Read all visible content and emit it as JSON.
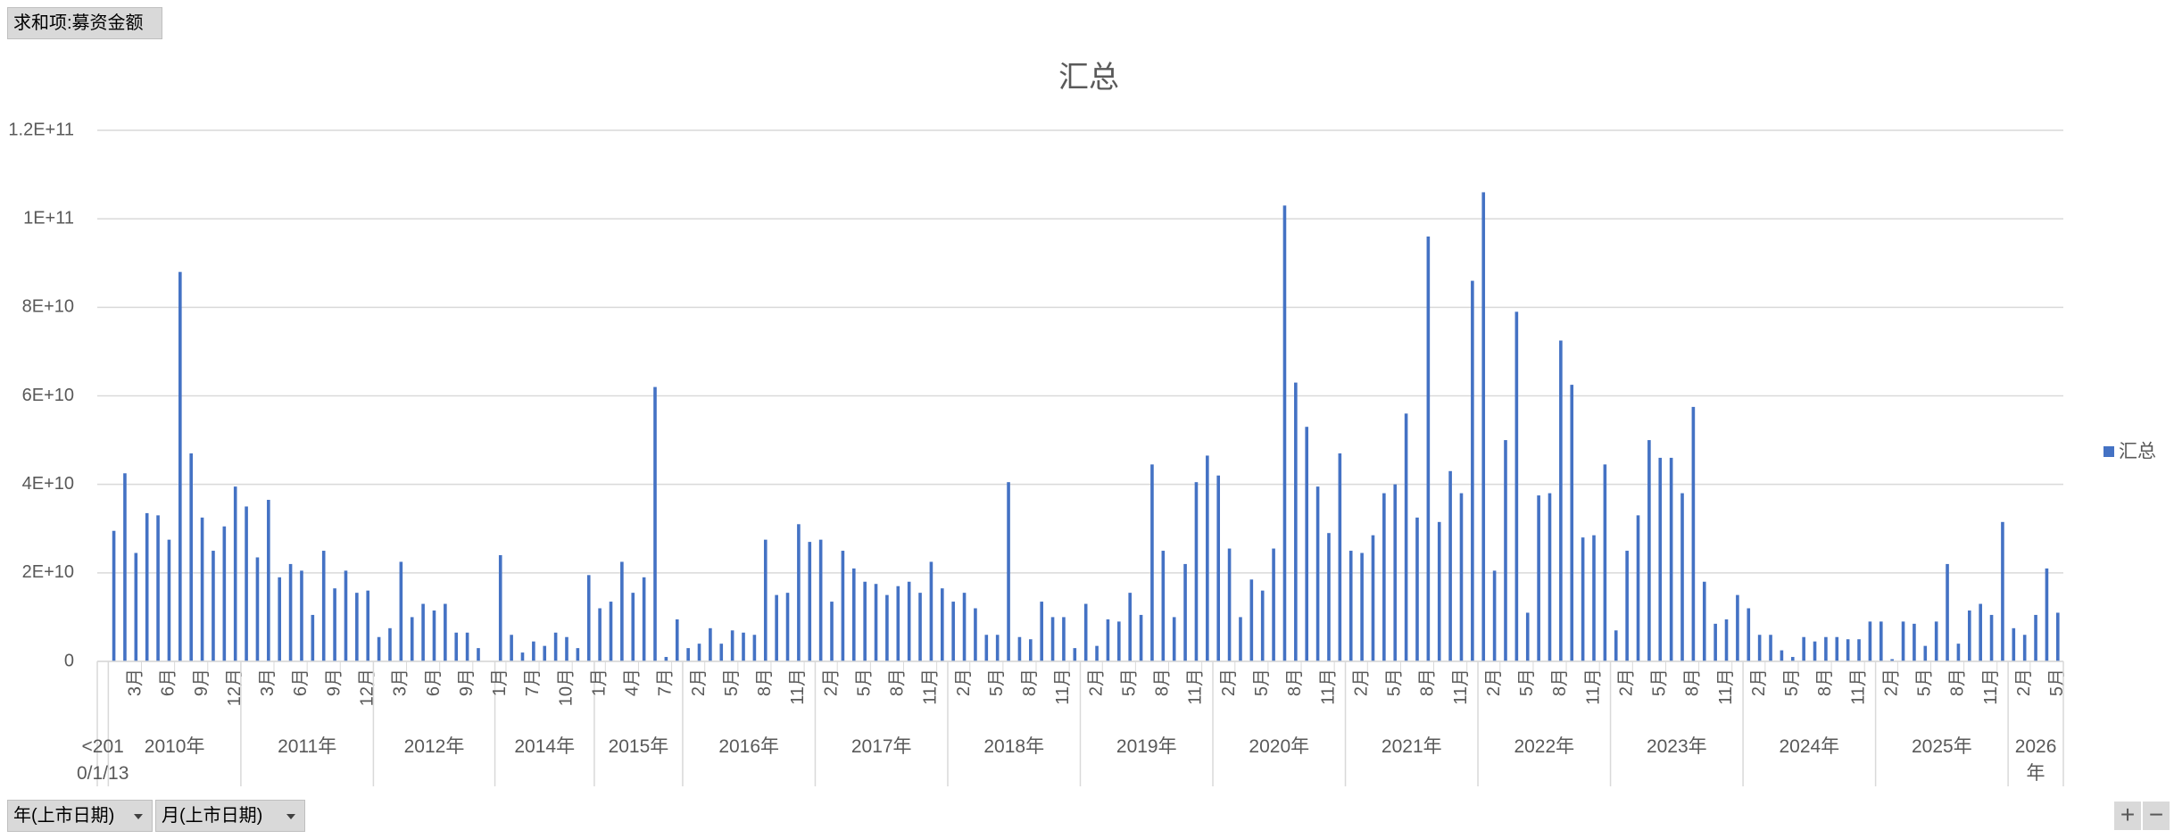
{
  "pivot": {
    "value_field": "求和项:募资金额",
    "row_fields": [
      "年(上市日期)",
      "月(上市日期)"
    ]
  },
  "chart_data": {
    "type": "bar",
    "title": "汇总",
    "legend": "right",
    "grid": true,
    "ylim": [
      0,
      120000000000.0
    ],
    "yticks": [
      0,
      {
        "value": 20000000000.0,
        "label": "2E+10"
      },
      {
        "value": 40000000000.0,
        "label": "4E+10"
      },
      {
        "value": 60000000000.0,
        "label": "6E+10"
      },
      {
        "value": 80000000000.0,
        "label": "8E+10"
      },
      {
        "value": 100000000000.0,
        "label": "1E+11"
      },
      {
        "value": 120000000000.0,
        "label": "1.2E+11"
      }
    ],
    "groups": [
      {
        "label": "<2010/1/13",
        "categories": [
          null
        ]
      },
      {
        "label": "2010年",
        "categories": [
          null,
          null,
          "3月",
          null,
          null,
          "6月",
          null,
          null,
          "9月",
          null,
          null,
          "12月"
        ]
      },
      {
        "label": "2011年",
        "categories": [
          null,
          null,
          "3月",
          null,
          null,
          "6月",
          null,
          null,
          "9月",
          null,
          null,
          "12月"
        ]
      },
      {
        "label": "2012年",
        "categories": [
          null,
          null,
          "3月",
          null,
          null,
          "6月",
          null,
          null,
          "9月",
          null,
          null
        ]
      },
      {
        "label": "2014年",
        "categories": [
          "1月",
          null,
          null,
          "7月",
          null,
          null,
          "10月",
          null,
          null
        ]
      },
      {
        "label": "2015年",
        "categories": [
          "1月",
          null,
          null,
          "4月",
          null,
          null,
          "7月",
          null
        ]
      },
      {
        "label": "2016年",
        "categories": [
          null,
          "2月",
          null,
          null,
          "5月",
          null,
          null,
          "8月",
          null,
          null,
          "11月",
          null
        ]
      },
      {
        "label": "2017年",
        "categories": [
          null,
          "2月",
          null,
          null,
          "5月",
          null,
          null,
          "8月",
          null,
          null,
          "11月",
          null
        ]
      },
      {
        "label": "2018年",
        "categories": [
          null,
          "2月",
          null,
          null,
          "5月",
          null,
          null,
          "8月",
          null,
          null,
          "11月",
          null
        ]
      },
      {
        "label": "2019年",
        "categories": [
          null,
          "2月",
          null,
          null,
          "5月",
          null,
          null,
          "8月",
          null,
          null,
          "11月",
          null
        ]
      },
      {
        "label": "2020年",
        "categories": [
          null,
          "2月",
          null,
          null,
          "5月",
          null,
          null,
          "8月",
          null,
          null,
          "11月",
          null
        ]
      },
      {
        "label": "2021年",
        "categories": [
          null,
          "2月",
          null,
          null,
          "5月",
          null,
          null,
          "8月",
          null,
          null,
          "11月",
          null
        ]
      },
      {
        "label": "2022年",
        "categories": [
          null,
          "2月",
          null,
          null,
          "5月",
          null,
          null,
          "8月",
          null,
          null,
          "11月",
          null
        ]
      },
      {
        "label": "2023年",
        "categories": [
          null,
          "2月",
          null,
          null,
          "5月",
          null,
          null,
          "8月",
          null,
          null,
          "11月",
          null
        ]
      },
      {
        "label": "2024年",
        "categories": [
          null,
          "2月",
          null,
          null,
          "5月",
          null,
          null,
          "8月",
          null,
          null,
          "11月",
          null
        ]
      },
      {
        "label": "2025年",
        "categories": [
          null,
          "2月",
          null,
          null,
          "5月",
          null,
          null,
          "8月",
          null,
          null,
          "11月",
          null
        ]
      },
      {
        "label": "2026年",
        "categories": [
          null,
          "2月",
          null,
          null,
          "5月"
        ]
      }
    ],
    "series": [
      {
        "name": "汇总",
        "color": "#4472c4",
        "values": [
          null,
          29500000000.0,
          42500000000.0,
          24500000000.0,
          33500000000.0,
          33000000000.0,
          27500000000.0,
          88000000000.0,
          47000000000.0,
          32500000000.0,
          25000000000.0,
          30500000000.0,
          39500000000.0,
          35000000000.0,
          23500000000.0,
          36500000000.0,
          19000000000.0,
          22000000000.0,
          20500000000.0,
          10500000000.0,
          25000000000.0,
          16500000000.0,
          20500000000.0,
          15500000000.0,
          16000000000.0,
          5500000000.0,
          7500000000.0,
          22500000000.0,
          10000000000.0,
          13000000000.0,
          11500000000.0,
          13000000000.0,
          6500000000.0,
          6500000000.0,
          3000000000.0,
          null,
          24000000000.0,
          6000000000.0,
          2000000000.0,
          4500000000.0,
          3500000000.0,
          6500000000.0,
          5500000000.0,
          3000000000.0,
          19500000000.0,
          12000000000.0,
          13500000000.0,
          22500000000.0,
          15500000000.0,
          19000000000.0,
          62000000000.0,
          1000000000.0,
          9500000000.0,
          3000000000.0,
          4000000000.0,
          7500000000.0,
          4000000000.0,
          7000000000.0,
          6500000000.0,
          6000000000.0,
          27500000000.0,
          15000000000.0,
          15500000000.0,
          31000000000.0,
          27000000000.0,
          27500000000.0,
          13500000000.0,
          25000000000.0,
          21000000000.0,
          18000000000.0,
          17500000000.0,
          15000000000.0,
          17000000000.0,
          18000000000.0,
          15500000000.0,
          22500000000.0,
          16500000000.0,
          13500000000.0,
          15500000000.0,
          12000000000.0,
          6000000000.0,
          6000000000.0,
          40500000000.0,
          5500000000.0,
          5000000000.0,
          13500000000.0,
          10000000000.0,
          10000000000.0,
          3000000000.0,
          13000000000.0,
          3500000000.0,
          9500000000.0,
          9000000000.0,
          15500000000.0,
          10500000000.0,
          44500000000.0,
          25000000000.0,
          10000000000.0,
          22000000000.0,
          40500000000.0,
          46500000000.0,
          42000000000.0,
          25500000000.0,
          10000000000.0,
          18500000000.0,
          16000000000.0,
          25500000000.0,
          103000000000.0,
          63000000000.0,
          53000000000.0,
          39500000000.0,
          29000000000.0,
          47000000000.0,
          25000000000.0,
          24500000000.0,
          28500000000.0,
          38000000000.0,
          40000000000.0,
          56000000000.0,
          32500000000.0,
          96000000000.0,
          31500000000.0,
          43000000000.0,
          38000000000.0,
          86000000000.0,
          106000000000.0,
          20500000000.0,
          50000000000.0,
          79000000000.0,
          11000000000.0,
          37500000000.0,
          38000000000.0,
          72500000000.0,
          62500000000.0,
          28000000000.0,
          28500000000.0,
          44500000000.0,
          7000000000.0,
          25000000000.0,
          33000000000.0,
          50000000000.0,
          46000000000.0,
          46000000000.0,
          38000000000.0,
          57500000000.0,
          18000000000.0,
          8500000000.0,
          9500000000.0,
          15000000000.0,
          12000000000.0,
          6000000000.0,
          6000000000.0,
          2500000000.0,
          1000000000.0,
          5500000000.0,
          4500000000.0,
          5500000000.0,
          5500000000.0,
          5000000000.0,
          5000000000.0,
          9000000000.0,
          9000000000.0,
          500000000.0,
          9000000000.0,
          8500000000.0,
          3500000000.0,
          9000000000.0,
          22000000000.0,
          4000000000.0,
          11500000000.0,
          13000000000.0,
          10500000000.0,
          31500000000.0,
          7500000000.0,
          6000000000.0,
          10500000000.0,
          21000000000.0,
          11000000000.0
        ]
      }
    ]
  }
}
